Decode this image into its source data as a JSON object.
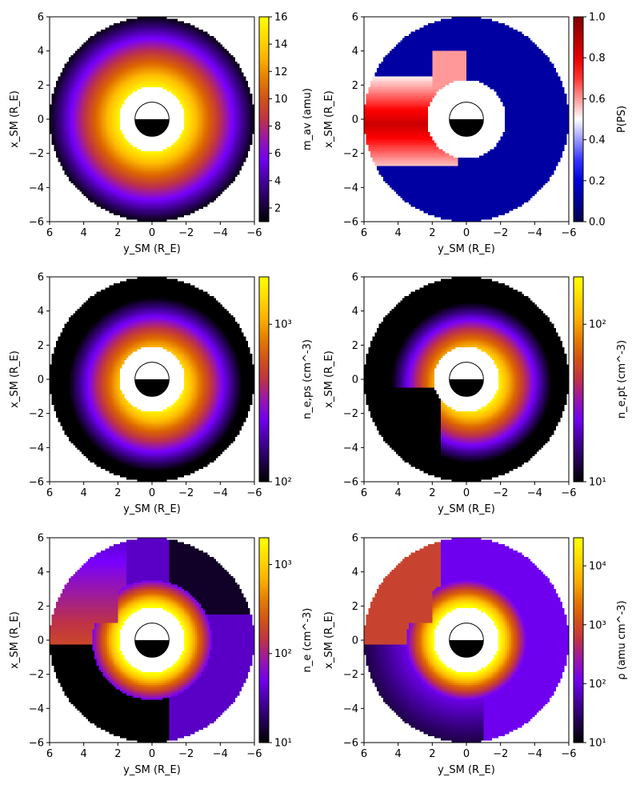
{
  "chart_data": [
    {
      "type": "heatmap",
      "pattern": "ring",
      "colormap": "gnuplot",
      "xlabel": "y_SM (R_E)",
      "ylabel": "x_SM (R_E)",
      "xlim": [
        6,
        -6
      ],
      "ylim": [
        -6,
        6
      ],
      "xticks": [
        6,
        4,
        2,
        0,
        -2,
        -4,
        -6
      ],
      "yticks": [
        -6,
        -4,
        -2,
        0,
        2,
        4,
        6
      ],
      "colorbar": {
        "label": "m_av (amu)",
        "scale": "linear",
        "range": [
          1,
          16
        ],
        "ticks": [
          2,
          4,
          6,
          8,
          10,
          12,
          14,
          16
        ]
      }
    },
    {
      "type": "heatmap",
      "pattern": "plume",
      "colormap": "seismic",
      "xlabel": "y_SM (R_E)",
      "ylabel": "x_SM (R_E)",
      "xlim": [
        6,
        -6
      ],
      "ylim": [
        -6,
        6
      ],
      "xticks": [
        6,
        4,
        2,
        0,
        -2,
        -4,
        -6
      ],
      "yticks": [
        -6,
        -4,
        -2,
        0,
        2,
        4,
        6
      ],
      "colorbar": {
        "label": "P(PS)",
        "scale": "linear",
        "range": [
          0,
          1
        ],
        "ticks": [
          0.0,
          0.2,
          0.4,
          0.6,
          0.8,
          1.0
        ]
      }
    },
    {
      "type": "heatmap",
      "pattern": "ring-shifted",
      "colormap": "gnuplot",
      "xlabel": "y_SM (R_E)",
      "ylabel": "x_SM (R_E)",
      "xlim": [
        6,
        -6
      ],
      "ylim": [
        -6,
        6
      ],
      "xticks": [
        6,
        4,
        2,
        0,
        -2,
        -4,
        -6
      ],
      "yticks": [
        -6,
        -4,
        -2,
        0,
        2,
        4,
        6
      ],
      "colorbar": {
        "label": "n_e,ps (cm^-3)",
        "scale": "log",
        "range": [
          100,
          2000
        ],
        "ticks": [
          100,
          1000
        ]
      }
    },
    {
      "type": "heatmap",
      "pattern": "trough",
      "colormap": "gnuplot",
      "xlabel": "y_SM (R_E)",
      "ylabel": "x_SM (R_E)",
      "xlim": [
        6,
        -6
      ],
      "ylim": [
        -6,
        6
      ],
      "xticks": [
        6,
        4,
        2,
        0,
        -2,
        -4,
        -6
      ],
      "yticks": [
        -6,
        -4,
        -2,
        0,
        2,
        4,
        6
      ],
      "colorbar": {
        "label": "n_e,pt (cm^-3)",
        "scale": "log",
        "range": [
          10,
          200
        ],
        "ticks": [
          10,
          100
        ]
      }
    },
    {
      "type": "heatmap",
      "pattern": "composite-ne",
      "colormap": "gnuplot",
      "xlabel": "y_SM (R_E)",
      "ylabel": "x_SM (R_E)",
      "xlim": [
        6,
        -6
      ],
      "ylim": [
        -6,
        6
      ],
      "xticks": [
        6,
        4,
        2,
        0,
        -2,
        -4,
        -6
      ],
      "yticks": [
        -6,
        -4,
        -2,
        0,
        2,
        4,
        6
      ],
      "colorbar": {
        "label": "n_e (cm^-3)",
        "scale": "log",
        "range": [
          10,
          2000
        ],
        "ticks": [
          10,
          100,
          1000
        ]
      }
    },
    {
      "type": "heatmap",
      "pattern": "composite-rho",
      "colormap": "gnuplot",
      "xlabel": "y_SM (R_E)",
      "ylabel": "x_SM (R_E)",
      "xlim": [
        6,
        -6
      ],
      "ylim": [
        -6,
        6
      ],
      "xticks": [
        6,
        4,
        2,
        0,
        -2,
        -4,
        -6
      ],
      "yticks": [
        -6,
        -4,
        -2,
        0,
        2,
        4,
        6
      ],
      "colorbar": {
        "label": "ρ (amu cm^-3)",
        "scale": "log",
        "range": [
          10,
          30000
        ],
        "ticks": [
          10,
          100,
          1000,
          10000
        ]
      }
    }
  ]
}
